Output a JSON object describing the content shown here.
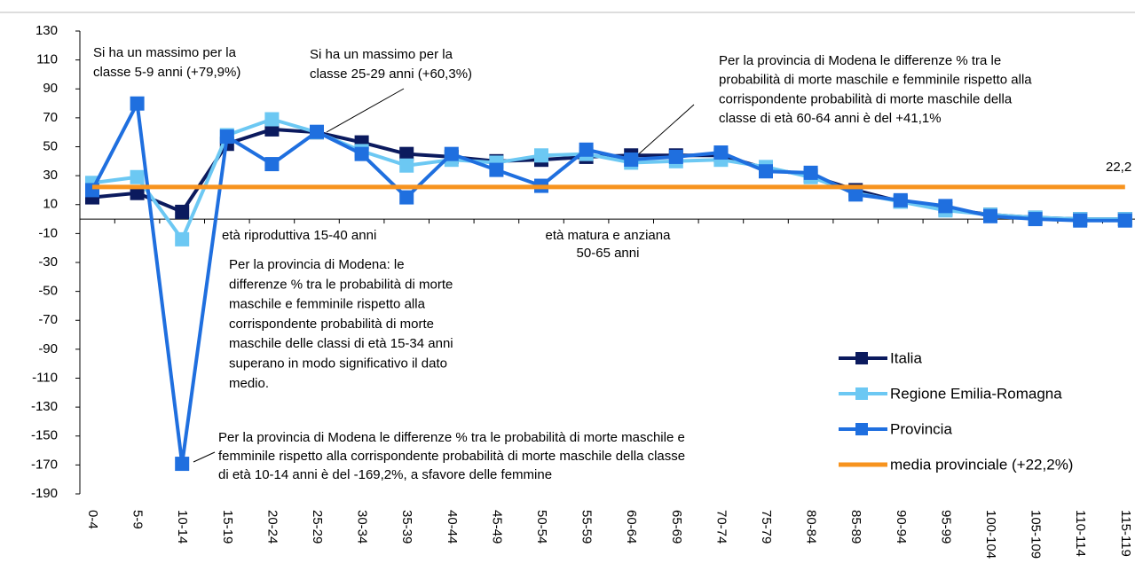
{
  "chart_data": {
    "type": "line",
    "categories": [
      "0-4",
      "5-9",
      "10-14",
      "15-19",
      "20-24",
      "25-29",
      "30-34",
      "35-39",
      "40-44",
      "45-49",
      "50-54",
      "55-59",
      "60-64",
      "65-69",
      "70-74",
      "75-79",
      "80-84",
      "85-89",
      "90-94",
      "95-99",
      "100-104",
      "105-109",
      "110-114",
      "115-119"
    ],
    "series": [
      {
        "name": "Italia",
        "color": "#0b1a5e",
        "values": [
          15,
          18,
          5,
          52,
          62,
          60,
          53,
          45,
          43,
          40,
          41,
          43,
          44,
          44,
          44,
          35,
          30,
          20,
          12,
          7,
          3,
          1,
          0,
          0
        ]
      },
      {
        "name": "Regione Emilia-Romagna",
        "color": "#6cc8f3",
        "values": [
          25,
          29,
          -14,
          58,
          69,
          60,
          47,
          37,
          41,
          39,
          44,
          45,
          39,
          40,
          41,
          36,
          29,
          18,
          12,
          6,
          3,
          1,
          0,
          0
        ]
      },
      {
        "name": "Provincia",
        "color": "#1f6fdf",
        "values": [
          20,
          79.9,
          -169.2,
          57,
          38,
          60.3,
          45,
          15,
          45,
          34,
          23,
          48,
          41.1,
          43,
          46,
          33,
          32,
          17,
          13,
          9,
          2,
          0,
          -1,
          -1
        ]
      }
    ],
    "reference_line": {
      "name": "media provinciale (+22,2%)",
      "value": 22.2,
      "value_label": "22,2",
      "color": "#f7931e"
    },
    "ylim": [
      -190,
      130
    ],
    "yticks": [
      130,
      110,
      90,
      70,
      50,
      30,
      10,
      -10,
      -30,
      -50,
      -70,
      -90,
      -110,
      -130,
      -150,
      -170,
      -190
    ],
    "annotations": [
      {
        "lines": [
          "Si ha un massimo per la",
          "classe 5-9 anni (+79,9%)"
        ]
      },
      {
        "lines": [
          "Si ha un massimo per la",
          "classe 25-29 anni (+60,3%)"
        ]
      },
      {
        "lines": [
          "Per la provincia di Modena le differenze % tra le",
          "probabilità di morte maschile e femminile rispetto alla",
          "corrispondente probabilità di morte maschile della",
          "classe di età 60-64 anni è del +41,1%"
        ]
      },
      {
        "lines": [
          "età riproduttiva 15-40 anni"
        ]
      },
      {
        "lines": [
          "età matura e anziana",
          "50-65 anni"
        ]
      },
      {
        "lines": [
          "Per la provincia di Modena: le",
          "differenze % tra le probabilità di morte",
          "maschile e femminile rispetto alla",
          "corrispondente probabilità di morte",
          "maschile delle classi di età 15-34 anni",
          "superano in modo significativo il dato",
          "medio."
        ]
      },
      {
        "lines": [
          "Per la provincia di Modena le differenze % tra le probabilità di morte maschile e",
          "femminile rispetto alla corrispondente probabilità di morte maschile della classe",
          "di età 10-14 anni è del -169,2%, a sfavore delle femmine"
        ]
      }
    ]
  }
}
